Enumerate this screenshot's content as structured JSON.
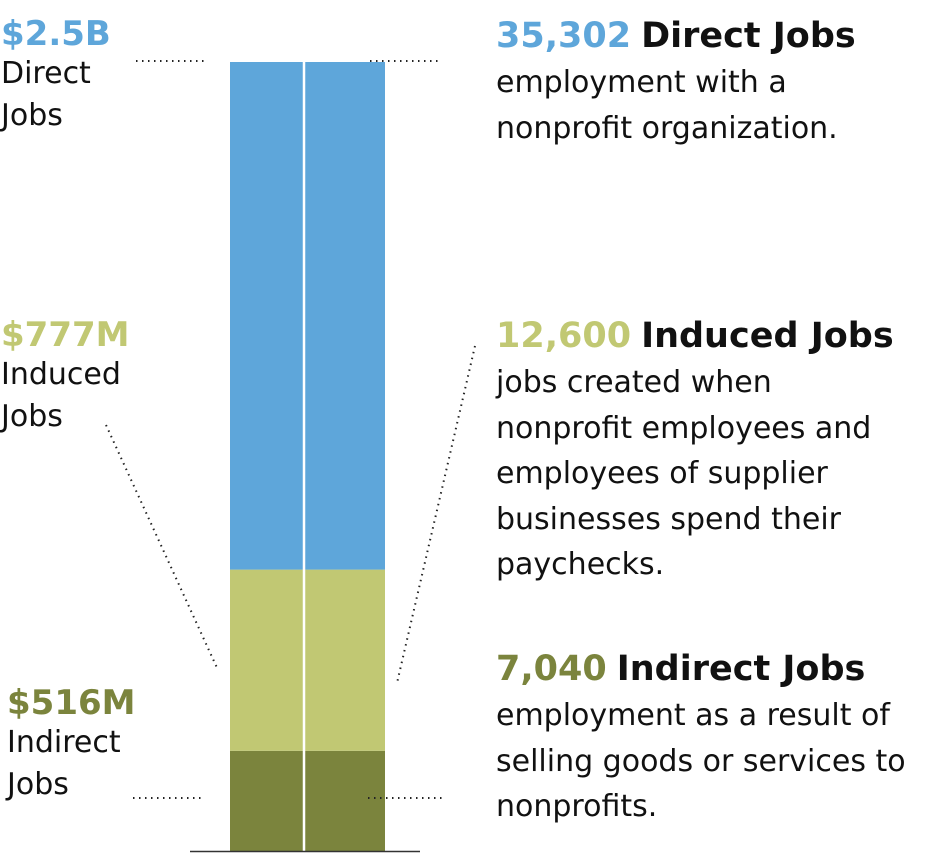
{
  "chart_data": {
    "type": "bar",
    "stacked": true,
    "categories": [
      "Jobs"
    ],
    "series": [
      {
        "name": "Direct Jobs",
        "value_label": "$2.5B",
        "value_millions": 2500,
        "jobs_label": "35,302",
        "jobs": 35302,
        "color": "#5ea6da",
        "description": "employment with a nonprofit organization."
      },
      {
        "name": "Induced Jobs",
        "value_label": "$777M",
        "value_millions": 777,
        "jobs_label": "12,600",
        "jobs": 12600,
        "color": "#c1c873",
        "description": "jobs created when nonprofit employees and employees of supplier businesses spend their paychecks."
      },
      {
        "name": "Indirect Jobs",
        "value_label": "$516M",
        "value_millions": 516,
        "jobs_label": "7,040",
        "jobs": 7040,
        "color": "#7b843d",
        "description": "employment as a result of selling goods or services to nonprofits."
      }
    ]
  },
  "labels": {
    "direct": {
      "amount": "$2.5B",
      "line1": "Direct",
      "line2": "Jobs"
    },
    "induced": {
      "amount": "$777M",
      "line1": "Induced",
      "line2": "Jobs"
    },
    "indirect": {
      "amount": "$516M",
      "line1": "Indirect",
      "line2": "Jobs"
    }
  },
  "descriptions": {
    "direct": {
      "number": "35,302",
      "title": "Direct Jobs",
      "text": "employment with a nonprofit organization."
    },
    "induced": {
      "number": "12,600",
      "title": "Induced Jobs",
      "text": "jobs created when nonprofit employees and employees of supplier businesses spend their paychecks."
    },
    "indirect": {
      "number": "7,040",
      "title": "Indirect Jobs",
      "text": "employment as a result of selling goods or services to nonprofits."
    }
  }
}
